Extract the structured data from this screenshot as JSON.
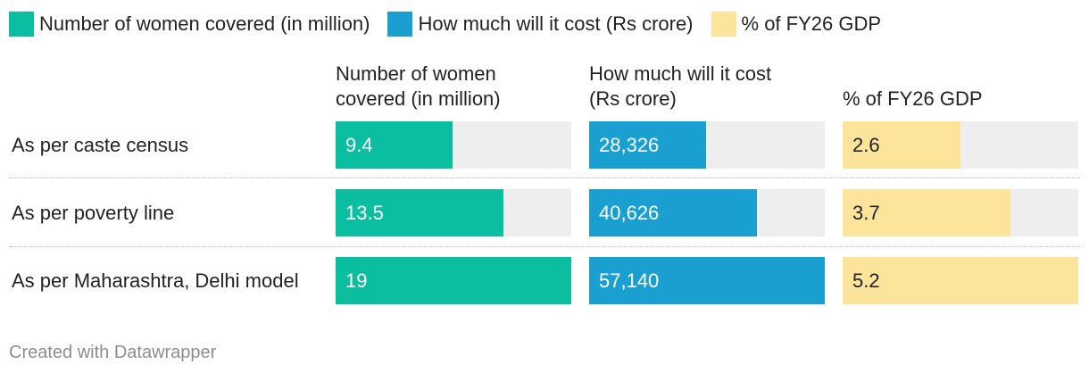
{
  "chart_data": {
    "type": "bar",
    "title": "",
    "legend": [
      {
        "label": "Number of women covered (in million)",
        "color": "#0bbea0"
      },
      {
        "label": "How much will it cost (Rs crore)",
        "color": "#1aa0d0"
      },
      {
        "label": "% of FY26 GDP",
        "color": "#fde49b"
      }
    ],
    "columns": [
      {
        "header_lines": [
          "Number of women",
          "covered (in million)"
        ],
        "color": "#0bbea0",
        "text_color": "#ffffff",
        "max": 19,
        "labels": [
          "9.4",
          "13.5",
          "19"
        ]
      },
      {
        "header_lines": [
          "How much will it cost",
          "(Rs crore)"
        ],
        "color": "#1aa0d0",
        "text_color": "#ffffff",
        "max": 57140,
        "labels": [
          "28,326",
          "40,626",
          "57,140"
        ]
      },
      {
        "header_lines": [
          "% of FY26 GDP"
        ],
        "color": "#fde49b",
        "text_color": "#222222",
        "max": 5.2,
        "labels": [
          "2.6",
          "3.7",
          "5.2"
        ]
      }
    ],
    "categories": [
      "As per caste census",
      "As per poverty line",
      "As per Maharashtra, Delhi model"
    ],
    "series": [
      {
        "name": "Number of women covered (in million)",
        "values": [
          9.4,
          13.5,
          19
        ]
      },
      {
        "name": "How much will it cost (Rs crore)",
        "values": [
          28326,
          40626,
          57140
        ]
      },
      {
        "name": "% of FY26 GDP",
        "values": [
          2.6,
          3.7,
          5.2
        ]
      }
    ]
  },
  "footer": "Created with Datawrapper"
}
